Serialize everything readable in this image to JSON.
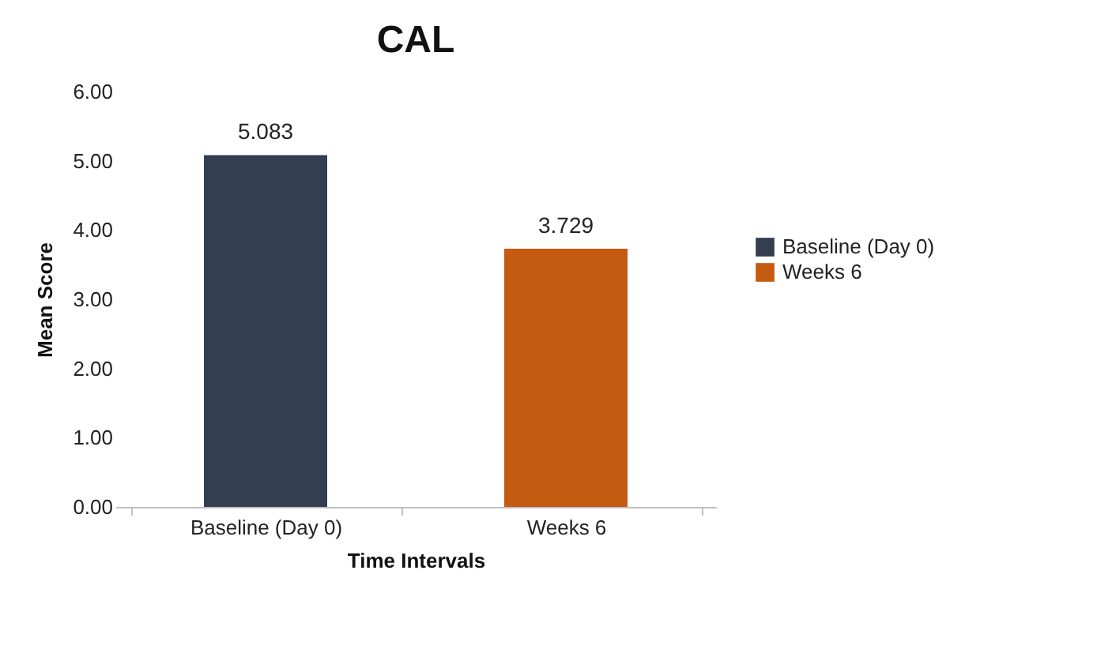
{
  "chart_data": {
    "type": "bar",
    "title": "CAL",
    "xlabel": "Time Intervals",
    "ylabel": "Mean Score",
    "categories": [
      "Baseline (Day 0)",
      "Weeks 6"
    ],
    "series": [
      {
        "name": "Baseline (Day 0)",
        "color": "#333f50",
        "values": [
          5.083,
          null
        ]
      },
      {
        "name": "Weeks 6",
        "color": "#c55a11",
        "values": [
          null,
          3.729
        ]
      }
    ],
    "ylim": [
      0,
      6
    ],
    "yticks": [
      {
        "value": 0,
        "label": "0.00"
      },
      {
        "value": 1,
        "label": "1.00"
      },
      {
        "value": 2,
        "label": "2.00"
      },
      {
        "value": 3,
        "label": "3.00"
      },
      {
        "value": 4,
        "label": "4.00"
      },
      {
        "value": 5,
        "label": "5.00"
      },
      {
        "value": 6,
        "label": "6.00"
      }
    ],
    "data_labels": true,
    "legend": "right"
  }
}
